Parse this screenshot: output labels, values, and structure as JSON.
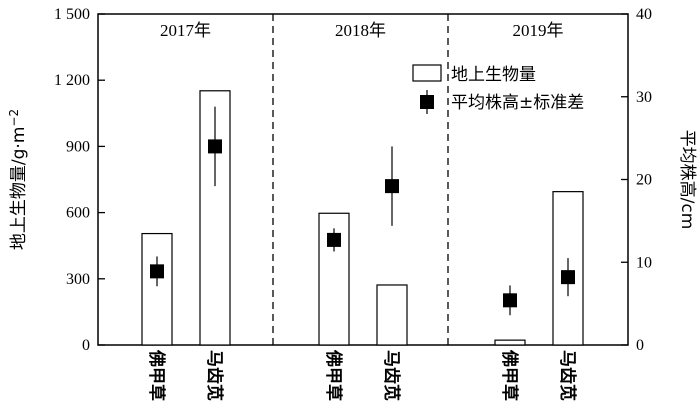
{
  "chart_data": {
    "type": "bar",
    "panels": [
      {
        "label": "2017年",
        "categories": [
          "佛甲草",
          "马齿苋"
        ],
        "biomass": [
          505,
          1152
        ],
        "height": [
          8.9,
          24.0
        ],
        "height_sd": [
          1.8,
          4.8
        ]
      },
      {
        "label": "2018年",
        "categories": [
          "佛甲草",
          "马齿苋"
        ],
        "biomass": [
          597,
          272
        ],
        "height": [
          12.7,
          19.2
        ],
        "height_sd": [
          1.4,
          4.8
        ]
      },
      {
        "label": "2019年",
        "categories": [
          "佛甲草",
          "马齿苋"
        ],
        "biomass": [
          22,
          695
        ],
        "height": [
          5.4,
          8.2
        ],
        "height_sd": [
          1.8,
          2.3
        ]
      }
    ],
    "series": [
      {
        "name": "地上生物量",
        "axis": "left",
        "style": "open-bar"
      },
      {
        "name": "平均株高±标准差",
        "axis": "right",
        "style": "square-marker-errorbar"
      }
    ],
    "ylabel": "地上生物量/g·m",
    "ylabel_superscript": "−2",
    "y2label": "平均株高/cm",
    "ylim": [
      0,
      1500
    ],
    "y2lim": [
      0,
      40
    ],
    "yticks": [
      "0",
      "300",
      "600",
      "900",
      "1 200",
      "1 500"
    ],
    "yticks_values": [
      0,
      300,
      600,
      900,
      1200,
      1500
    ],
    "y2ticks": [
      "0",
      "10",
      "20",
      "30",
      "40"
    ],
    "y2ticks_values": [
      0,
      10,
      20,
      30,
      40
    ],
    "legend_position": "top-right",
    "panel_dividers": "dashed"
  }
}
